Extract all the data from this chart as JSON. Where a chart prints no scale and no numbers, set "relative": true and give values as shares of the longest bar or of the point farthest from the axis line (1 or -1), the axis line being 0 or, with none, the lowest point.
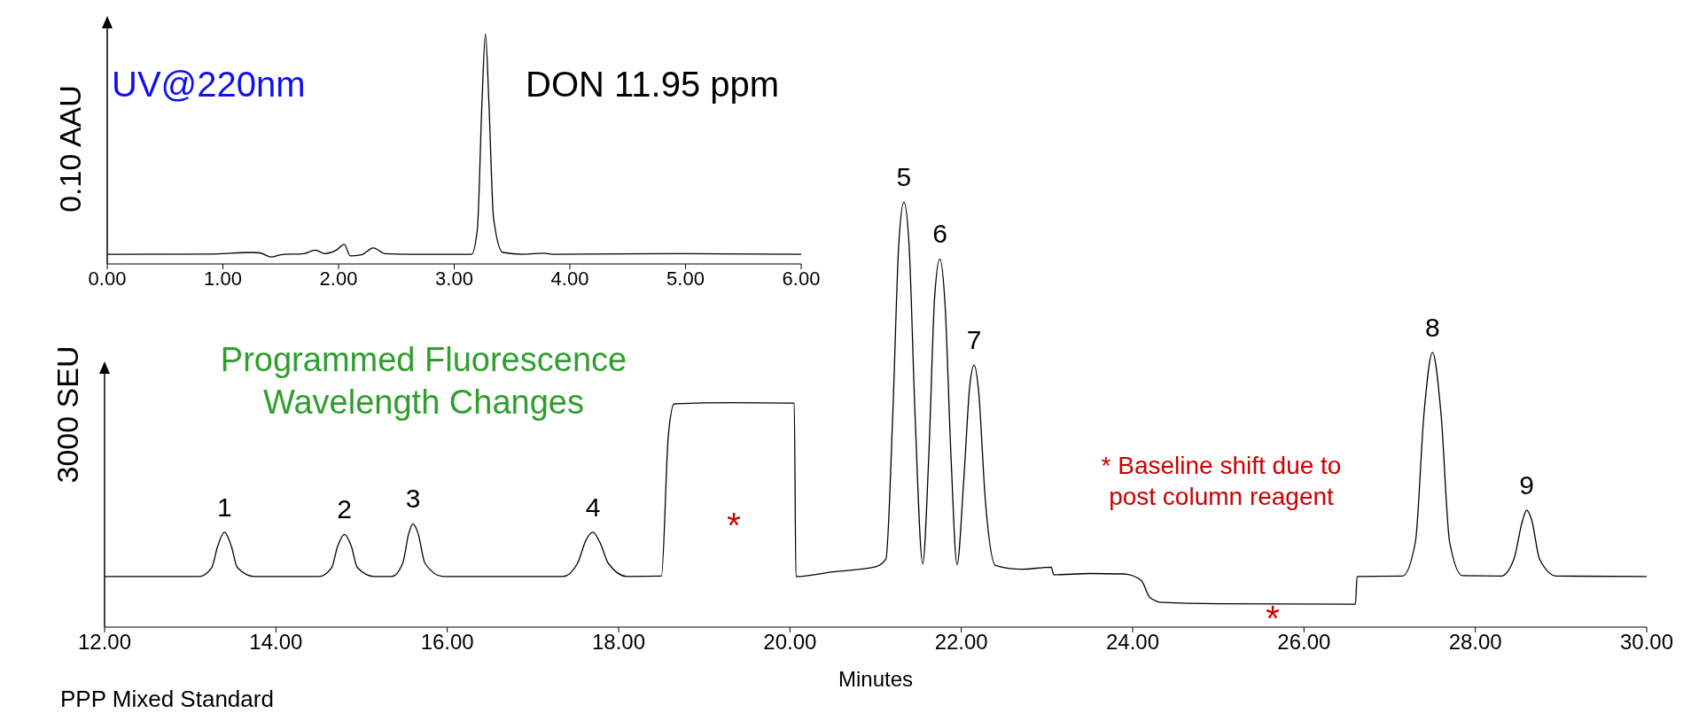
{
  "chart_data": [
    {
      "type": "line",
      "relative": true,
      "ylabel": "0.10 AAU",
      "xlim": [
        0,
        6
      ],
      "xticks": [
        {
          "value": 0,
          "label": "0.00"
        },
        {
          "value": 1,
          "label": "1.00"
        },
        {
          "value": 2,
          "label": "2.00"
        },
        {
          "value": 3,
          "label": "3.00"
        },
        {
          "value": 4,
          "label": "4.00"
        },
        {
          "value": 5,
          "label": "5.00"
        },
        {
          "value": 6,
          "label": "6.00"
        }
      ],
      "series": [
        {
          "color": "#000000",
          "x": [
            0,
            0.9,
            1.25,
            1.32,
            1.42,
            1.5,
            1.7,
            1.8,
            1.88,
            1.98,
            2.05,
            2.1,
            2.2,
            2.3,
            2.4,
            2.6,
            3.15,
            3.2,
            3.24,
            3.27,
            3.3,
            3.34,
            3.42,
            3.6,
            3.77,
            3.85,
            5.0,
            6
          ],
          "values": [
            0.042,
            0.043,
            0.05,
            0.048,
            0.03,
            0.04,
            0.045,
            0.06,
            0.045,
            0.06,
            0.085,
            0.035,
            0.04,
            0.07,
            0.045,
            0.042,
            0.042,
            0.15,
            0.7,
            1.0,
            0.7,
            0.2,
            0.05,
            0.042,
            0.047,
            0.042,
            0.045,
            0.042
          ]
        }
      ],
      "annotations": [
        "UV@220nm",
        "DON 11.95 ppm"
      ]
    },
    {
      "type": "line",
      "relative": true,
      "ylabel": "3000 SEU",
      "xlabel": "Minutes",
      "xlim": [
        12,
        30
      ],
      "xticks": [
        {
          "value": 12,
          "label": "12.00"
        },
        {
          "value": 14,
          "label": "14.00"
        },
        {
          "value": 16,
          "label": "16.00"
        },
        {
          "value": 18,
          "label": "18.00"
        },
        {
          "value": 20,
          "label": "20.00"
        },
        {
          "value": 22,
          "label": "22.00"
        },
        {
          "value": 24,
          "label": "24.00"
        },
        {
          "value": 26,
          "label": "26.00"
        },
        {
          "value": 28,
          "label": "28.00"
        },
        {
          "value": 30,
          "label": "30.00"
        }
      ],
      "series": [
        {
          "color": "#000000",
          "x": [
            12,
            13.1,
            13.25,
            13.32,
            13.4,
            13.48,
            13.55,
            13.75,
            14.5,
            14.65,
            14.72,
            14.8,
            14.88,
            14.95,
            15.15,
            15.35,
            15.48,
            15.55,
            15.6,
            15.66,
            15.74,
            15.95,
            17.35,
            17.52,
            17.62,
            17.7,
            17.78,
            17.88,
            18.1,
            18.5,
            18.58,
            18.65,
            19.3,
            20.05,
            20.07,
            20.5,
            21.0,
            21.12,
            21.2,
            21.27,
            21.33,
            21.39,
            21.46,
            21.55,
            21.62,
            21.69,
            21.75,
            21.81,
            21.88,
            21.95,
            22.03,
            22.1,
            22.15,
            22.2,
            22.28,
            22.4,
            22.7,
            23.05,
            23.08,
            23.5,
            23.9,
            24.1,
            24.2,
            24.35,
            25,
            26.6,
            26.62,
            27.15,
            27.3,
            27.4,
            27.5,
            27.6,
            27.7,
            27.85,
            28.3,
            28.45,
            28.55,
            28.6,
            28.66,
            28.75,
            28.95,
            30
          ],
          "values": [
            0.119,
            0.119,
            0.14,
            0.19,
            0.223,
            0.19,
            0.14,
            0.119,
            0.119,
            0.14,
            0.19,
            0.218,
            0.19,
            0.14,
            0.119,
            0.119,
            0.15,
            0.22,
            0.243,
            0.22,
            0.15,
            0.119,
            0.119,
            0.15,
            0.205,
            0.223,
            0.2,
            0.15,
            0.119,
            0.12,
            0.45,
            0.525,
            0.528,
            0.527,
            0.119,
            0.13,
            0.142,
            0.16,
            0.5,
            0.9,
            1.0,
            0.9,
            0.5,
            0.149,
            0.4,
            0.78,
            0.866,
            0.76,
            0.4,
            0.147,
            0.35,
            0.57,
            0.616,
            0.56,
            0.3,
            0.145,
            0.136,
            0.141,
            0.123,
            0.126,
            0.125,
            0.11,
            0.07,
            0.058,
            0.055,
            0.054,
            0.119,
            0.12,
            0.2,
            0.5,
            0.646,
            0.5,
            0.2,
            0.121,
            0.12,
            0.16,
            0.25,
            0.275,
            0.25,
            0.16,
            0.12,
            0.119
          ]
        }
      ],
      "annotations": [
        {
          "text": "1",
          "x": 13.4,
          "y": 0.223
        },
        {
          "text": "2",
          "x": 14.8,
          "y": 0.218
        },
        {
          "text": "3",
          "x": 15.6,
          "y": 0.243
        },
        {
          "text": "4",
          "x": 17.7,
          "y": 0.223
        },
        {
          "text": "5",
          "x": 21.33,
          "y": 1.0
        },
        {
          "text": "6",
          "x": 21.75,
          "y": 0.866
        },
        {
          "text": "7",
          "x": 22.15,
          "y": 0.616
        },
        {
          "text": "8",
          "x": 27.5,
          "y": 0.646
        },
        {
          "text": "9",
          "x": 28.6,
          "y": 0.275
        },
        "*",
        "*",
        "Programmed Fluorescence Wavelength Changes",
        "* Baseline shift due to post column reagent",
        "PPP Mixed Standard"
      ]
    }
  ]
}
